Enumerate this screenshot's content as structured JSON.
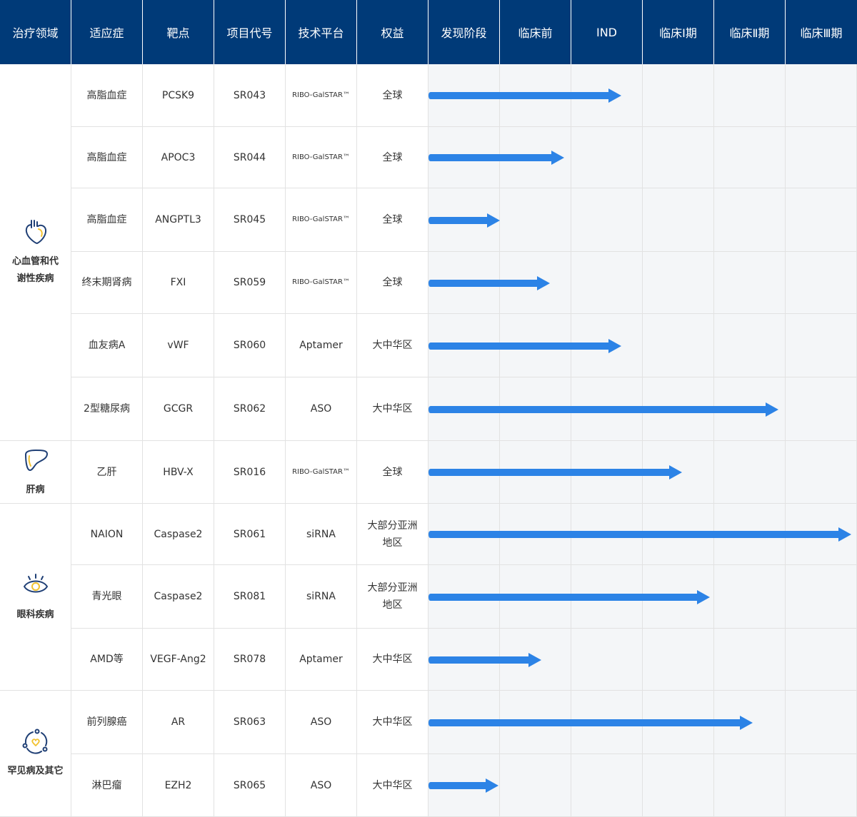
{
  "header": {
    "columns": [
      "治疗领域",
      "适应症",
      "靶点",
      "项目代号",
      "技术平台",
      "权益",
      "发现阶段",
      "临床前",
      "IND",
      "临床I期",
      "临床Ⅱ期",
      "临床Ⅲ期"
    ]
  },
  "stages": [
    "发现阶段",
    "临床前",
    "IND",
    "临床I期",
    "临床Ⅱ期",
    "临床Ⅲ期"
  ],
  "areas": [
    {
      "label": "心血管和代谢性疾病",
      "label_lines": [
        "心血管和代",
        "谢性疾病"
      ],
      "icon": "heart-icon"
    },
    {
      "label": "肝病",
      "label_lines": [
        "肝病"
      ],
      "icon": "liver-icon"
    },
    {
      "label": "眼科疾病",
      "label_lines": [
        "眼科疾病"
      ],
      "icon": "eye-icon"
    },
    {
      "label": "罕见病及其它",
      "label_lines": [
        "罕见病及其它"
      ],
      "icon": "rare-disease-icon"
    }
  ],
  "rows": [
    {
      "area": 0,
      "indication": "高脂血症",
      "target": "PCSK9",
      "code": "SR043",
      "platform": "RIBO-GalSTAR™",
      "rights": "全球",
      "progress_stage": "IND",
      "progress_stages_completed": 2.7
    },
    {
      "area": 0,
      "indication": "高脂血症",
      "target": "APOC3",
      "code": "SR044",
      "platform": "RIBO-GalSTAR™",
      "rights": "全球",
      "progress_stage": "临床前",
      "progress_stages_completed": 1.9
    },
    {
      "area": 0,
      "indication": "高脂血症",
      "target": "ANGPTL3",
      "code": "SR045",
      "platform": "RIBO-GalSTAR™",
      "rights": "全球",
      "progress_stage": "发现阶段",
      "progress_stages_completed": 1.0
    },
    {
      "area": 0,
      "indication": "终末期肾病",
      "target": "FXI",
      "code": "SR059",
      "platform": "RIBO-GalSTAR™",
      "rights": "全球",
      "progress_stage": "临床前",
      "progress_stages_completed": 1.7
    },
    {
      "area": 0,
      "indication": "血友病A",
      "target": "vWF",
      "code": "SR060",
      "platform": "Aptamer",
      "rights": "大中华区",
      "progress_stage": "IND",
      "progress_stages_completed": 2.7
    },
    {
      "area": 0,
      "indication": "2型糖尿病",
      "target": "GCGR",
      "code": "SR062",
      "platform": "ASO",
      "rights": "大中华区",
      "progress_stage": "临床Ⅱ期",
      "progress_stages_completed": 4.9
    },
    {
      "area": 1,
      "indication": "乙肝",
      "target": "HBV-X",
      "code": "SR016",
      "platform": "RIBO-GalSTAR™",
      "rights": "全球",
      "progress_stage": "临床I期",
      "progress_stages_completed": 3.55
    },
    {
      "area": 2,
      "indication": "NAION",
      "target": "Caspase2",
      "code": "SR061",
      "platform": "siRNA",
      "rights": "大部分亚洲地区",
      "progress_stage": "临床Ⅲ期",
      "progress_stages_completed": 5.92
    },
    {
      "area": 2,
      "indication": "青光眼",
      "target": "Caspase2",
      "code": "SR081",
      "platform": "siRNA",
      "rights": "大部分亚洲地区",
      "progress_stage": "临床I期",
      "progress_stages_completed": 3.94
    },
    {
      "area": 2,
      "indication": "AMD等",
      "target": "VEGF-Ang2",
      "code": "SR078",
      "platform": "Aptamer",
      "rights": "大中华区",
      "progress_stage": "临床前",
      "progress_stages_completed": 1.58
    },
    {
      "area": 3,
      "indication": "前列腺癌",
      "target": "AR",
      "code": "SR063",
      "platform": "ASO",
      "rights": "大中华区",
      "progress_stage": "临床Ⅱ期",
      "progress_stages_completed": 4.54
    },
    {
      "area": 3,
      "indication": "淋巴瘤",
      "target": "EZH2",
      "code": "SR065",
      "platform": "ASO",
      "rights": "大中华区",
      "progress_stage": "发现阶段",
      "progress_stages_completed": 0.98
    }
  ],
  "colors": {
    "header_bg": "#003a78",
    "header_text": "#ffffff",
    "arrow": "#2c83e6",
    "stage_bg": "#f4f6f8",
    "grid_line": "#e2e2e2",
    "icon_stroke": "#1f3f75",
    "icon_accent": "#f2c230"
  }
}
